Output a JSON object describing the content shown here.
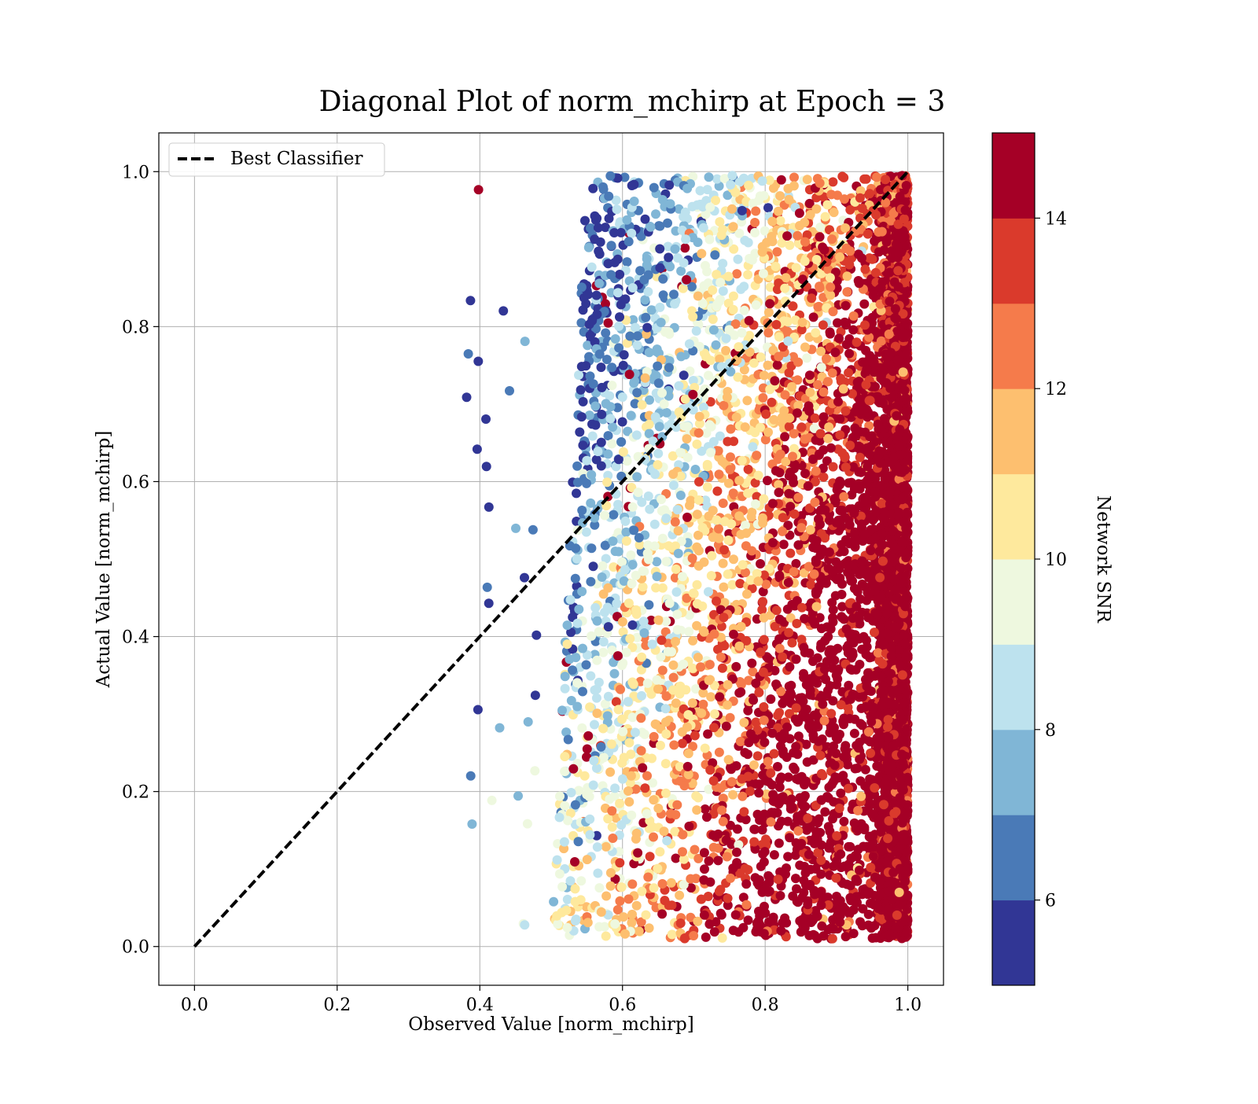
{
  "chart_data": {
    "type": "scatter",
    "title": "Diagonal Plot of norm_mchirp at Epoch = 3",
    "xlabel": "Observed Value [norm_mchirp]",
    "ylabel": "Actual Value [norm_mchirp]",
    "xlim": [
      -0.05,
      1.05
    ],
    "ylim": [
      -0.05,
      1.05
    ],
    "xticks": [
      "0.0",
      "0.2",
      "0.4",
      "0.6",
      "0.8",
      "1.0"
    ],
    "yticks": [
      "0.0",
      "0.2",
      "0.4",
      "0.6",
      "0.8",
      "1.0"
    ],
    "grid": true,
    "legend": {
      "placement": "upper-left",
      "entries": [
        {
          "label": "Best Classifier",
          "style": "dashed",
          "color": "#000000"
        }
      ]
    },
    "reference_line": {
      "label": "Best Classifier",
      "x": [
        0,
        1
      ],
      "y": [
        0,
        1
      ]
    },
    "colorbar": {
      "label": "Network SNR",
      "range": [
        5,
        15
      ],
      "ticks": [
        "6",
        "8",
        "10",
        "12",
        "14"
      ],
      "bins": [
        {
          "from": 5,
          "to": 6,
          "color": "#313695"
        },
        {
          "from": 6,
          "to": 7,
          "color": "#4a7ab7"
        },
        {
          "from": 7,
          "to": 8,
          "color": "#80b6d6"
        },
        {
          "from": 8,
          "to": 9,
          "color": "#bde2ee"
        },
        {
          "from": 9,
          "to": 10,
          "color": "#eef8df"
        },
        {
          "from": 10,
          "to": 11,
          "color": "#fee99d"
        },
        {
          "from": 11,
          "to": 12,
          "color": "#fdbf6f"
        },
        {
          "from": 12,
          "to": 13,
          "color": "#f57b4b"
        },
        {
          "from": 13,
          "to": 14,
          "color": "#da3a2c"
        },
        {
          "from": 14,
          "to": 15,
          "color": "#a50026"
        }
      ]
    },
    "point_cloud": {
      "x_range": [
        0.38,
        1.0
      ],
      "y_range": [
        0.0,
        1.0
      ],
      "snr_range": [
        5,
        15
      ]
    }
  }
}
